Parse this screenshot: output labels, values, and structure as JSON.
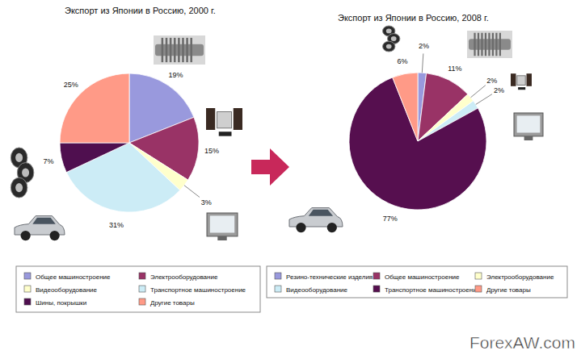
{
  "chart_data": [
    {
      "type": "pie",
      "title": "Экспорт из Японии в Россию, 2000 г.",
      "categories": [
        "Общее машиностроение",
        "Электрооборудование",
        "Видеооборудование",
        "Транспортное машиностроение",
        "Шины, покрышки",
        "Другие товары"
      ],
      "values": [
        19,
        15,
        3,
        31,
        7,
        25
      ],
      "value_labels": [
        "19%",
        "15%",
        "3%",
        "31%",
        "7%",
        "25%"
      ],
      "colors": [
        "#9999dd",
        "#993366",
        "#ffffcc",
        "#ccecf6",
        "#4f0f4f",
        "#ff9a87"
      ],
      "data_labels": true,
      "legend": "bottom"
    },
    {
      "type": "pie",
      "title": "Экспорт из Японии в Россию, 2008 г.",
      "categories": [
        "Резино-технические изделия",
        "Общее машиностроение",
        "Электрооборудование",
        "Видеооборудование",
        "Транспортное машиностроение",
        "Другие товары"
      ],
      "values": [
        2,
        11,
        2,
        2,
        77,
        6
      ],
      "value_labels": [
        "2%",
        "11%",
        "2%",
        "2%",
        "77%",
        "6%"
      ],
      "colors": [
        "#9999dd",
        "#993366",
        "#ffffcc",
        "#ccecf6",
        "#560f4f",
        "#ff9a87"
      ],
      "data_labels": true,
      "legend": "bottom"
    }
  ],
  "watermark": "ForexAW.com"
}
